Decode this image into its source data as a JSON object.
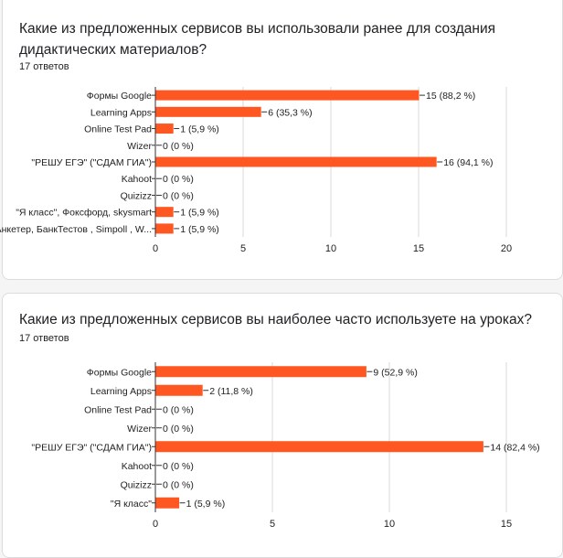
{
  "questions": [
    {
      "title": "Какие из предложенных сервисов вы использовали ранее для создания дидактических материалов?",
      "responses": "17 ответов"
    },
    {
      "title": "Какие из предложенных сервисов вы наиболее часто используете на уроках?",
      "responses": "17 ответов"
    }
  ],
  "chart_data": [
    {
      "type": "bar",
      "orientation": "horizontal",
      "categories": [
        "Формы Google",
        "Learning Apps",
        "Online Test Pad",
        "Wizer",
        "\"РЕШУ ЕГЭ\" (\"СДАМ ГИА\")",
        "Kahoot",
        "Quizizz",
        "\"Я класс\", Фоксфорд, skysmart",
        "Анкетер, БанкТестов , Simpoll , W..."
      ],
      "values": [
        15,
        6,
        1,
        0,
        16,
        0,
        0,
        1,
        1
      ],
      "value_labels": [
        "15 (88,2 %)",
        "6 (35,3 %)",
        "1 (5,9 %)",
        "0 (0 %)",
        "16 (94,1 %)",
        "0 (0 %)",
        "0 (0 %)",
        "1 (5,9 %)",
        "1 (5,9 %)"
      ],
      "xlim": [
        0,
        20
      ],
      "xticks": [
        0,
        5,
        10,
        15,
        20
      ],
      "grid": true,
      "bar_color": "#ff5722"
    },
    {
      "type": "bar",
      "orientation": "horizontal",
      "categories": [
        "Формы Google",
        "Learning Apps",
        "Online Test Pad",
        "Wizer",
        "\"РЕШУ ЕГЭ\" (\"СДАМ ГИА\")",
        "Kahoot",
        "Quizizz",
        "\"Я класс\""
      ],
      "values": [
        9,
        2,
        0,
        0,
        14,
        0,
        0,
        1
      ],
      "value_labels": [
        "9 (52,9 %)",
        "2 (11,8 %)",
        "0 (0 %)",
        "0 (0 %)",
        "14 (82,4 %)",
        "0 (0 %)",
        "0 (0 %)",
        "1 (5,9 %)"
      ],
      "xlim": [
        0,
        15
      ],
      "xticks": [
        0,
        5,
        10,
        15
      ],
      "grid": true,
      "bar_color": "#ff5722"
    }
  ]
}
